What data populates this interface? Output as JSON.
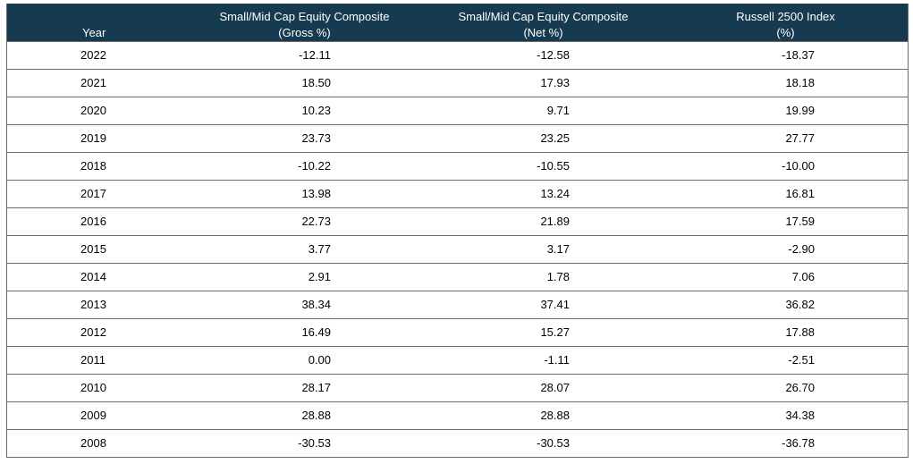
{
  "table": {
    "headers": [
      {
        "line1": "",
        "line2": "Year"
      },
      {
        "line1": "Small/Mid Cap Equity Composite",
        "line2": "(Gross %)"
      },
      {
        "line1": "Small/Mid Cap Equity Composite",
        "line2": "(Net %)"
      },
      {
        "line1": "Russell 2500 Index",
        "line2": "(%)"
      }
    ],
    "rows": [
      [
        "2022",
        "-12.11",
        "-12.58",
        "-18.37"
      ],
      [
        "2021",
        "18.50",
        "17.93",
        "18.18"
      ],
      [
        "2020",
        "10.23",
        "9.71",
        "19.99"
      ],
      [
        "2019",
        "23.73",
        "23.25",
        "27.77"
      ],
      [
        "2018",
        "-10.22",
        "-10.55",
        "-10.00"
      ],
      [
        "2017",
        "13.98",
        "13.24",
        "16.81"
      ],
      [
        "2016",
        "22.73",
        "21.89",
        "17.59"
      ],
      [
        "2015",
        "3.77",
        "3.17",
        "-2.90"
      ],
      [
        "2014",
        "2.91",
        "1.78",
        "7.06"
      ],
      [
        "2013",
        "38.34",
        "37.41",
        "36.82"
      ],
      [
        "2012",
        "16.49",
        "15.27",
        "17.88"
      ],
      [
        "2011",
        "0.00",
        "-1.11",
        "-2.51"
      ],
      [
        "2010",
        "28.17",
        "28.07",
        "26.70"
      ],
      [
        "2009",
        "28.88",
        "28.88",
        "34.38"
      ],
      [
        "2008",
        "-30.53",
        "-30.53",
        "-36.78"
      ]
    ]
  }
}
